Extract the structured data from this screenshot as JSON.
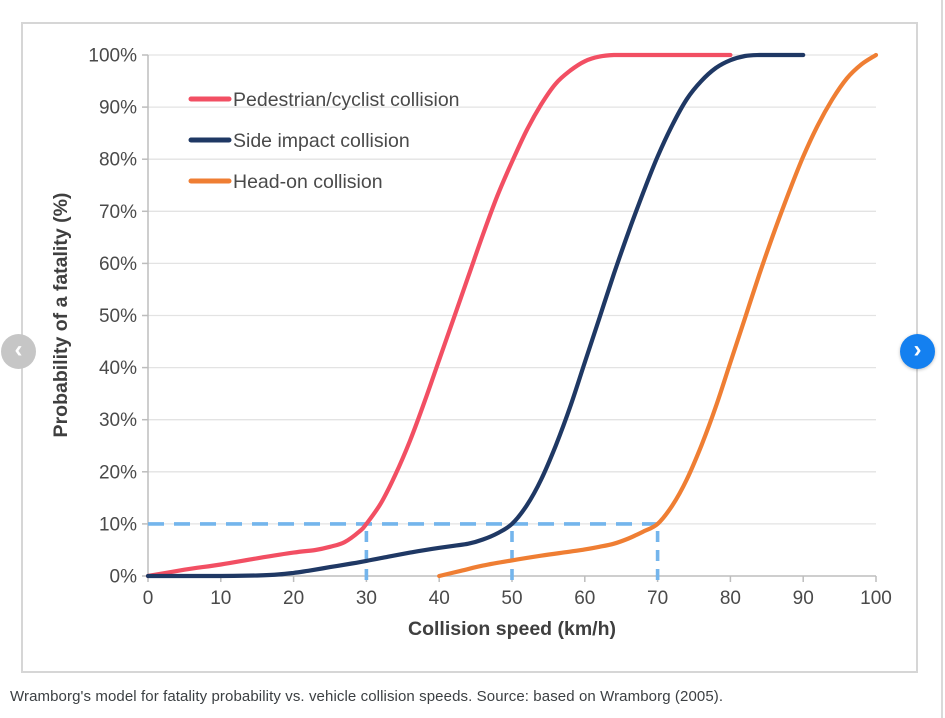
{
  "caption": "Wramborg's model for fatality probability vs. vehicle collision speeds. Source: based on Wramborg (2005).",
  "nav": {
    "prev_symbol": "‹",
    "next_symbol": "›",
    "prev_color": "#c6c6c6",
    "next_color": "#1480f0"
  },
  "chart_data": {
    "type": "line",
    "title": "",
    "xlabel": "Collision speed (km/h)",
    "ylabel": "Probability of a fatality (%)",
    "xlim": [
      0,
      100
    ],
    "ylim": [
      0,
      100
    ],
    "x_ticks": [
      0,
      10,
      20,
      30,
      40,
      50,
      60,
      70,
      80,
      90,
      100
    ],
    "y_tick_labels": [
      "0%",
      "10%",
      "20%",
      "30%",
      "40%",
      "50%",
      "60%",
      "70%",
      "80%",
      "90%",
      "100%"
    ],
    "grid": "horizontal",
    "legend_position": "top-left-inside",
    "colors": {
      "grid": "#e3e3e3",
      "axis": "#bdbdbd",
      "tick_text": "#4a4a4a",
      "title_text": "#3f3f3f",
      "dashed_guide": "#74b5ec"
    },
    "series": [
      {
        "name": "Pedestrian/cyclist collision",
        "color": "#f24f63",
        "points": [
          [
            0,
            0
          ],
          [
            5,
            1.2
          ],
          [
            10,
            2.2
          ],
          [
            15,
            3.4
          ],
          [
            20,
            4.5
          ],
          [
            23,
            5
          ],
          [
            25,
            5.6
          ],
          [
            27,
            6.5
          ],
          [
            29,
            8.5
          ],
          [
            30,
            10
          ],
          [
            32,
            14
          ],
          [
            34,
            19.5
          ],
          [
            36,
            26
          ],
          [
            38,
            33.5
          ],
          [
            40,
            41.5
          ],
          [
            42,
            49.5
          ],
          [
            44,
            57.5
          ],
          [
            46,
            65.5
          ],
          [
            48,
            73
          ],
          [
            50,
            79.5
          ],
          [
            52,
            85.5
          ],
          [
            54,
            90.5
          ],
          [
            56,
            94.5
          ],
          [
            58,
            97
          ],
          [
            60,
            98.8
          ],
          [
            62,
            99.7
          ],
          [
            64,
            100
          ],
          [
            68,
            100
          ],
          [
            72,
            100
          ],
          [
            76,
            100
          ],
          [
            80,
            100
          ]
        ]
      },
      {
        "name": "Side impact collision",
        "color": "#1f3864",
        "points": [
          [
            0,
            0
          ],
          [
            5,
            0
          ],
          [
            10,
            0
          ],
          [
            15,
            0.1
          ],
          [
            18,
            0.3
          ],
          [
            20,
            0.6
          ],
          [
            22,
            1
          ],
          [
            25,
            1.7
          ],
          [
            28,
            2.4
          ],
          [
            30,
            2.9
          ],
          [
            33,
            3.7
          ],
          [
            36,
            4.5
          ],
          [
            39,
            5.2
          ],
          [
            42,
            5.8
          ],
          [
            44,
            6.2
          ],
          [
            46,
            7
          ],
          [
            48,
            8.2
          ],
          [
            50,
            10
          ],
          [
            52,
            13.5
          ],
          [
            54,
            18.5
          ],
          [
            56,
            25
          ],
          [
            58,
            32.5
          ],
          [
            60,
            41
          ],
          [
            62,
            49.5
          ],
          [
            64,
            58
          ],
          [
            66,
            66
          ],
          [
            68,
            73.5
          ],
          [
            70,
            80.5
          ],
          [
            72,
            86.5
          ],
          [
            74,
            91.5
          ],
          [
            76,
            95
          ],
          [
            78,
            97.5
          ],
          [
            80,
            99
          ],
          [
            82,
            99.8
          ],
          [
            84,
            100
          ],
          [
            87,
            100
          ],
          [
            90,
            100
          ]
        ]
      },
      {
        "name": "Head-on collision",
        "color": "#ef7e33",
        "points": [
          [
            40,
            0
          ],
          [
            43,
            1
          ],
          [
            46,
            2
          ],
          [
            50,
            3
          ],
          [
            54,
            3.9
          ],
          [
            57,
            4.5
          ],
          [
            60,
            5.1
          ],
          [
            62,
            5.6
          ],
          [
            64,
            6.2
          ],
          [
            66,
            7.2
          ],
          [
            68,
            8.5
          ],
          [
            70,
            10
          ],
          [
            72,
            13.5
          ],
          [
            74,
            18.5
          ],
          [
            76,
            25
          ],
          [
            78,
            32.5
          ],
          [
            80,
            41
          ],
          [
            82,
            49.5
          ],
          [
            84,
            58
          ],
          [
            86,
            66
          ],
          [
            88,
            73.5
          ],
          [
            90,
            80.5
          ],
          [
            92,
            86.5
          ],
          [
            94,
            91.5
          ],
          [
            96,
            95.5
          ],
          [
            98,
            98.2
          ],
          [
            100,
            100
          ]
        ]
      }
    ],
    "annotations": {
      "h_guide": {
        "y": 10,
        "x_from": 0,
        "x_to": 70
      },
      "v_guides": [
        {
          "x": 30,
          "y_from": 0,
          "y_to": 10
        },
        {
          "x": 50,
          "y_from": 0,
          "y_to": 10
        },
        {
          "x": 70,
          "y_from": 0,
          "y_to": 10
        }
      ]
    }
  }
}
